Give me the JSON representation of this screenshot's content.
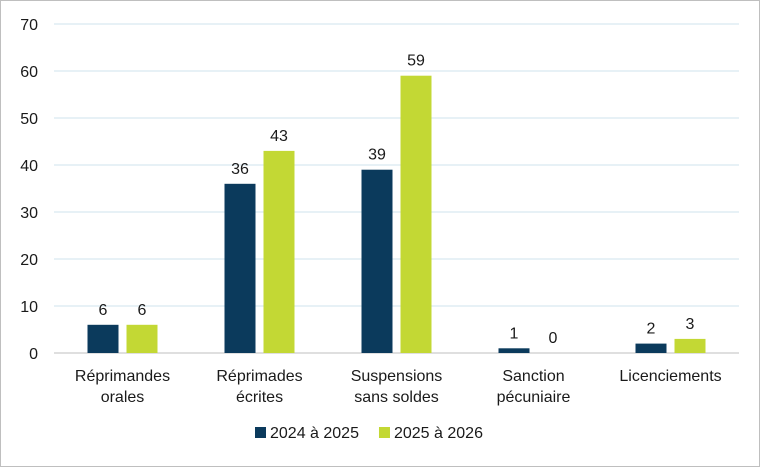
{
  "chart_data": {
    "type": "bar",
    "title": "",
    "xlabel": "",
    "ylabel": "",
    "ylim": [
      0,
      70
    ],
    "yticks": [
      0,
      10,
      20,
      30,
      40,
      50,
      60,
      70
    ],
    "grid": true,
    "legend_position": "bottom",
    "categories": [
      [
        "Réprimandes",
        "orales"
      ],
      [
        "Réprimades",
        "écrites"
      ],
      [
        "Suspensions",
        "sans soldes"
      ],
      [
        "Sanction",
        "pécuniaire"
      ],
      [
        "Licenciements"
      ]
    ],
    "series": [
      {
        "name": "2024 à 2025",
        "color": "#0b3a5c",
        "values": [
          6,
          36,
          39,
          1,
          2
        ]
      },
      {
        "name": "2025 à 2026",
        "color": "#c3d834",
        "values": [
          6,
          43,
          59,
          0,
          3
        ]
      }
    ],
    "colors": {
      "grid": "#cfe3ee",
      "axis": "#bfbfbf",
      "text": "#1a1a1a"
    }
  }
}
